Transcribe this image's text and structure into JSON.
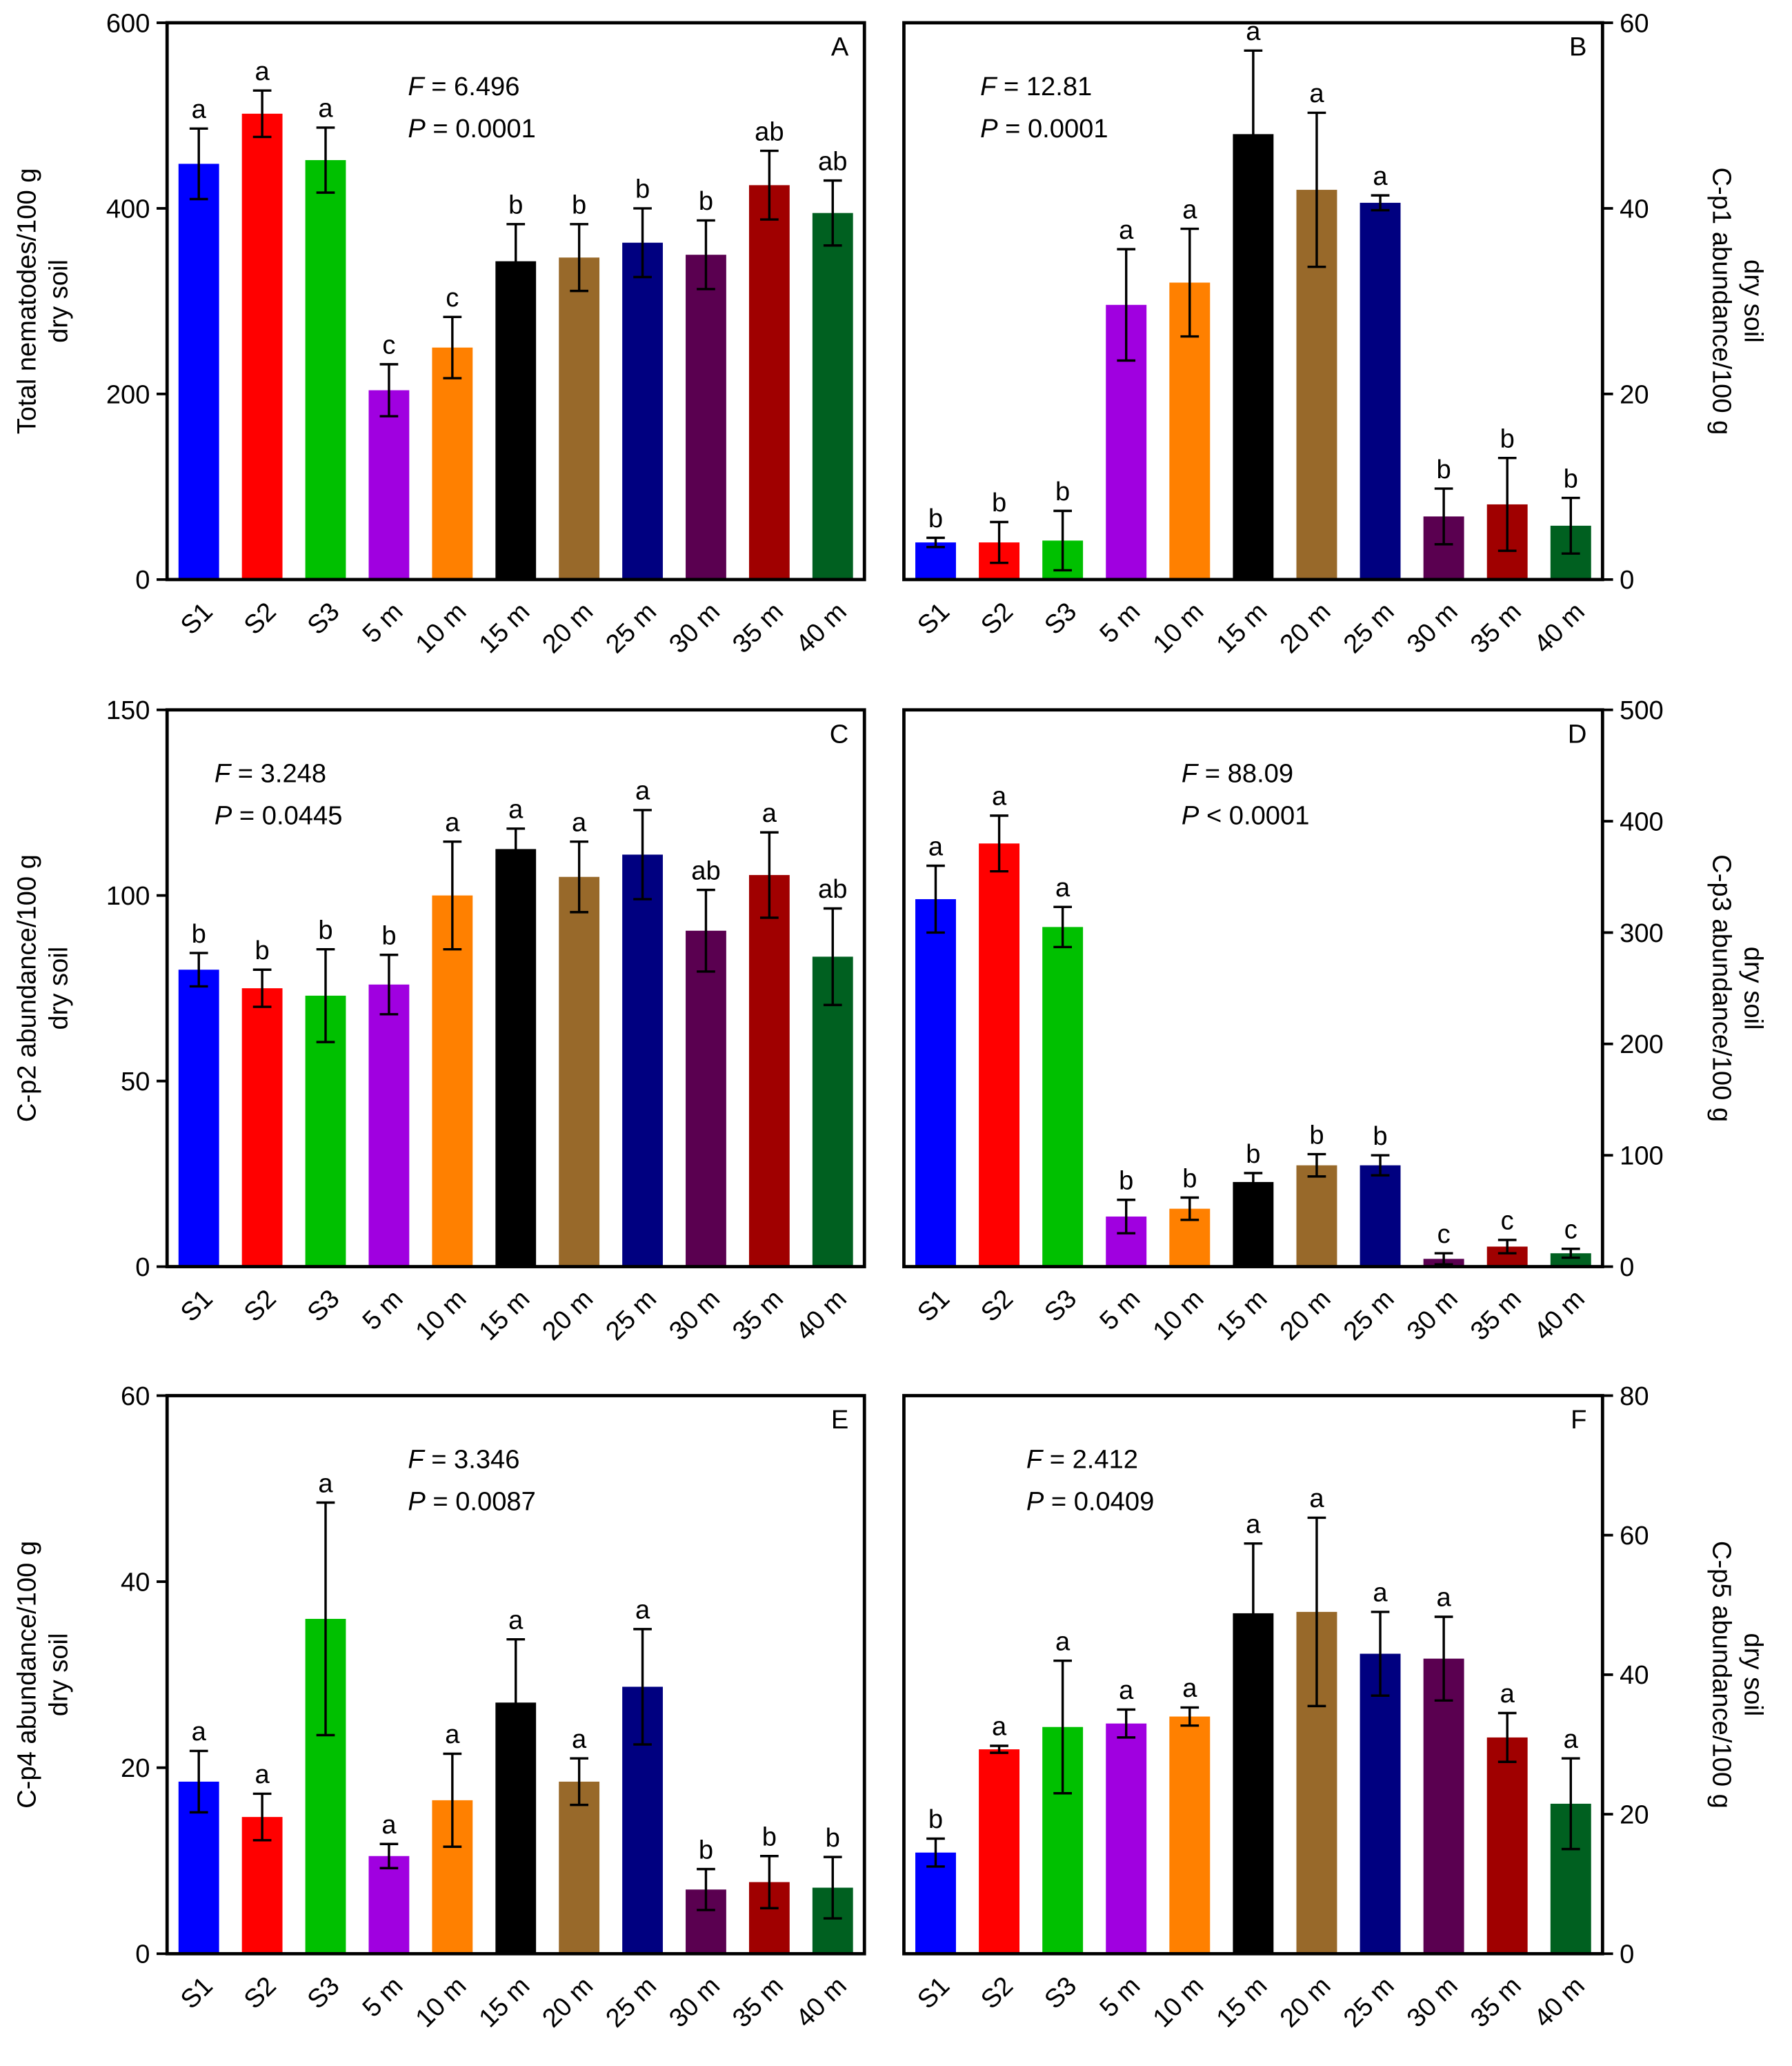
{
  "chart_data": [
    {
      "type": "bar",
      "panel": "A",
      "ylabel": [
        "Total nematodes/100 g",
        "dry soil"
      ],
      "axis_side": "left",
      "annotations": [
        {
          "italic": "F",
          "text": " = 6.496"
        },
        {
          "italic": "P",
          "text": " = 0.0001"
        }
      ],
      "categories": [
        "S1",
        "S2",
        "S3",
        "5 m",
        "10 m",
        "15 m",
        "20 m",
        "25 m",
        "30 m",
        "35 m",
        "40 m"
      ],
      "series": [
        {
          "values": [
            448,
            502,
            452,
            204,
            250,
            343,
            347,
            363,
            350,
            425,
            395
          ],
          "errors": [
            38,
            25,
            35,
            28,
            33,
            40,
            36,
            37,
            37,
            37,
            35
          ],
          "letters": [
            "a",
            "a",
            "a",
            "c",
            "c",
            "b",
            "b",
            "b",
            "b",
            "ab",
            "ab"
          ],
          "colors": [
            "#0000ff",
            "#ff0000",
            "#00c000",
            "#a000e0",
            "#ff8000",
            "#000000",
            "#98692a",
            "#000080",
            "#5a0050",
            "#a00000",
            "#006020"
          ]
        }
      ],
      "ylim": [
        0,
        600
      ],
      "yticks": [
        0,
        200,
        400,
        600
      ]
    },
    {
      "type": "bar",
      "panel": "B",
      "ylabel": [
        "C-p1 abundance/100 g",
        "dry soil"
      ],
      "axis_side": "right",
      "annotations": [
        {
          "italic": "F",
          "text": " = 12.81"
        },
        {
          "italic": "P",
          "text": " = 0.0001"
        }
      ],
      "categories": [
        "S1",
        "S2",
        "S3",
        "5 m",
        "10 m",
        "15 m",
        "20 m",
        "25 m",
        "30 m",
        "35 m",
        "40 m"
      ],
      "series": [
        {
          "values": [
            4,
            4,
            4.2,
            29.6,
            32,
            48,
            42,
            40.6,
            6.8,
            8.1,
            5.8
          ],
          "errors": [
            0.5,
            2.2,
            3.2,
            6,
            5.8,
            9,
            8.3,
            0.8,
            3,
            5,
            3
          ],
          "letters": [
            "b",
            "b",
            "b",
            "a",
            "a",
            "a",
            "a",
            "a",
            "b",
            "b",
            "b"
          ],
          "colors": [
            "#0000ff",
            "#ff0000",
            "#00c000",
            "#a000e0",
            "#ff8000",
            "#000000",
            "#98692a",
            "#000080",
            "#5a0050",
            "#a00000",
            "#006020"
          ]
        }
      ],
      "ylim": [
        0,
        60
      ],
      "yticks": [
        0,
        20,
        40,
        60
      ]
    },
    {
      "type": "bar",
      "panel": "C",
      "ylabel": [
        "C-p2 abundance/100 g",
        "dry soil"
      ],
      "axis_side": "left",
      "annotations": [
        {
          "italic": "F",
          "text": " = 3.248"
        },
        {
          "italic": "P",
          "text": " = 0.0445"
        }
      ],
      "categories": [
        "S1",
        "S2",
        "S3",
        "5 m",
        "10 m",
        "15 m",
        "20 m",
        "25 m",
        "30 m",
        "35 m",
        "40 m"
      ],
      "series": [
        {
          "values": [
            80,
            75,
            73,
            76,
            100,
            112.5,
            105,
            111,
            90.5,
            105.5,
            83.5
          ],
          "errors": [
            4.5,
            5,
            12.5,
            8,
            14.5,
            5.5,
            9.5,
            12,
            11,
            11.5,
            13
          ],
          "letters": [
            "b",
            "b",
            "b",
            "b",
            "a",
            "a",
            "a",
            "a",
            "ab",
            "a",
            "ab"
          ],
          "colors": [
            "#0000ff",
            "#ff0000",
            "#00c000",
            "#a000e0",
            "#ff8000",
            "#000000",
            "#98692a",
            "#000080",
            "#5a0050",
            "#a00000",
            "#006020"
          ]
        }
      ],
      "ylim": [
        0,
        150
      ],
      "yticks": [
        0,
        50,
        100,
        150
      ]
    },
    {
      "type": "bar",
      "panel": "D",
      "ylabel": [
        "C-p3 abundance/100 g",
        "dry soil"
      ],
      "axis_side": "right",
      "annotations": [
        {
          "italic": "F",
          "text": " = 88.09"
        },
        {
          "italic": "P",
          "text": " < 0.0001"
        }
      ],
      "categories": [
        "S1",
        "S2",
        "S3",
        "5 m",
        "10 m",
        "15 m",
        "20 m",
        "25 m",
        "30 m",
        "35 m",
        "40 m"
      ],
      "series": [
        {
          "values": [
            330,
            380,
            305,
            45,
            52,
            76,
            91,
            91,
            7,
            18,
            12
          ],
          "errors": [
            30,
            25,
            18,
            15,
            10,
            8,
            10,
            9,
            5,
            6,
            4
          ],
          "letters": [
            "a",
            "a",
            "a",
            "b",
            "b",
            "b",
            "b",
            "b",
            "c",
            "c",
            "c"
          ],
          "colors": [
            "#0000ff",
            "#ff0000",
            "#00c000",
            "#a000e0",
            "#ff8000",
            "#000000",
            "#98692a",
            "#000080",
            "#5a0050",
            "#a00000",
            "#006020"
          ]
        }
      ],
      "ylim": [
        0,
        500
      ],
      "yticks": [
        0,
        100,
        200,
        300,
        400,
        500
      ]
    },
    {
      "type": "bar",
      "panel": "E",
      "ylabel": [
        "C-p4 abundance/100 g",
        "dry soil"
      ],
      "axis_side": "left",
      "annotations": [
        {
          "italic": "F",
          "text": " = 3.346"
        },
        {
          "italic": "P",
          "text": " = 0.0087"
        }
      ],
      "categories": [
        "S1",
        "S2",
        "S3",
        "5 m",
        "10 m",
        "15 m",
        "20 m",
        "25 m",
        "30 m",
        "35 m",
        "40 m"
      ],
      "series": [
        {
          "values": [
            18.5,
            14.7,
            36,
            10.5,
            16.5,
            27,
            18.5,
            28.7,
            6.9,
            7.7,
            7.1
          ],
          "errors": [
            3.3,
            2.5,
            12.5,
            1.3,
            5,
            6.8,
            2.5,
            6.2,
            2.2,
            2.8,
            3.3
          ],
          "letters": [
            "a",
            "a",
            "a",
            "a",
            "a",
            "a",
            "a",
            "a",
            "b",
            "b",
            "b"
          ],
          "colors": [
            "#0000ff",
            "#ff0000",
            "#00c000",
            "#a000e0",
            "#ff8000",
            "#000000",
            "#98692a",
            "#000080",
            "#5a0050",
            "#a00000",
            "#006020"
          ]
        }
      ],
      "ylim": [
        0,
        60
      ],
      "yticks": [
        0,
        20,
        40,
        60
      ]
    },
    {
      "type": "bar",
      "panel": "F",
      "ylabel": [
        "C-p5 abundance/100 g",
        "dry soil"
      ],
      "axis_side": "right",
      "annotations": [
        {
          "italic": "F",
          "text": " = 2.412"
        },
        {
          "italic": "P",
          "text": " = 0.0409"
        }
      ],
      "categories": [
        "S1",
        "S2",
        "S3",
        "5 m",
        "10 m",
        "15 m",
        "20 m",
        "25 m",
        "30 m",
        "35 m",
        "40 m"
      ],
      "series": [
        {
          "values": [
            14.5,
            29.3,
            32.5,
            33,
            34,
            48.8,
            49,
            43,
            42.3,
            31,
            21.5
          ],
          "errors": [
            2,
            0.5,
            9.5,
            2,
            1.3,
            10,
            13.5,
            6,
            6,
            3.5,
            6.5
          ],
          "letters": [
            "b",
            "a",
            "a",
            "a",
            "a",
            "a",
            "a",
            "a",
            "a",
            "a",
            "a"
          ],
          "colors": [
            "#0000ff",
            "#ff0000",
            "#00c000",
            "#a000e0",
            "#ff8000",
            "#000000",
            "#98692a",
            "#000080",
            "#5a0050",
            "#a00000",
            "#006020"
          ]
        }
      ],
      "ylim": [
        0,
        80
      ],
      "yticks": [
        0,
        20,
        40,
        60,
        80
      ]
    }
  ]
}
